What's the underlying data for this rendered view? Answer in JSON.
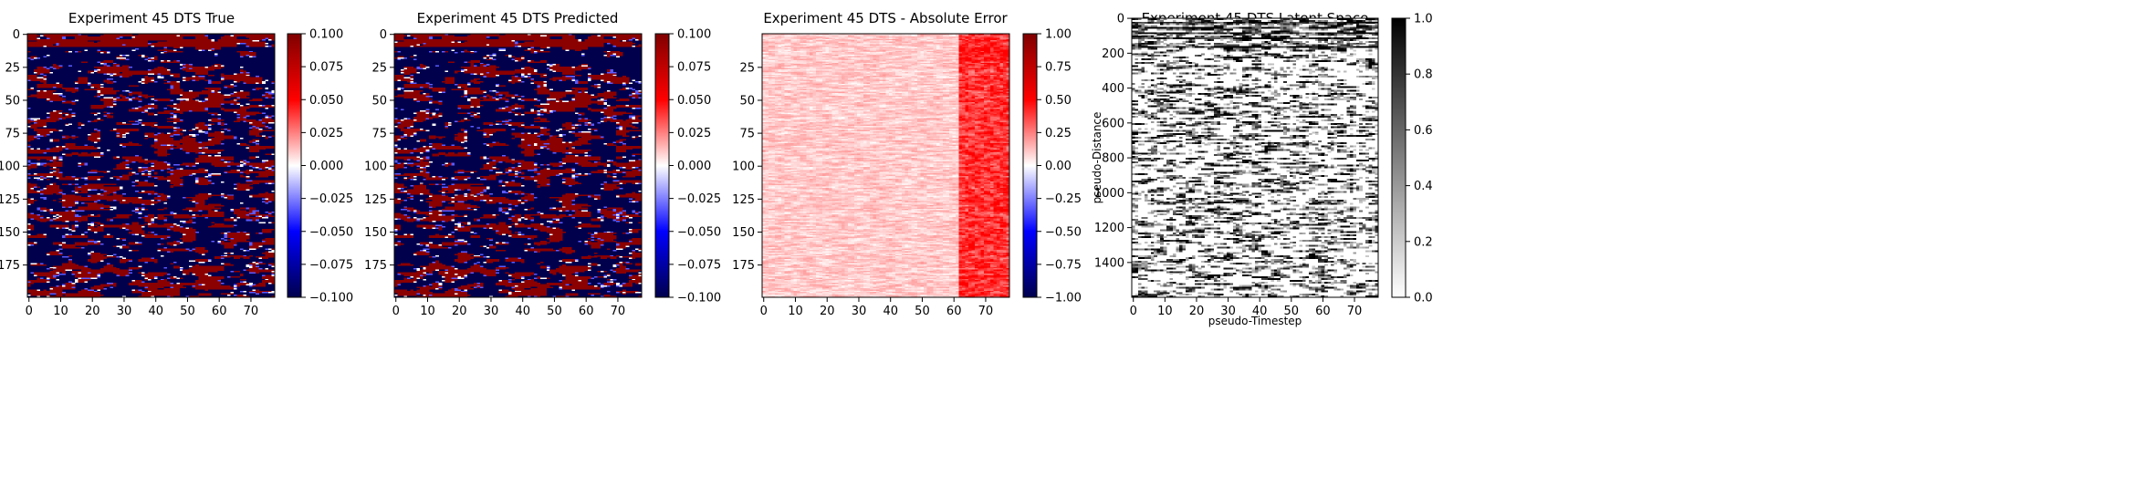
{
  "chart_data": [
    {
      "type": "heatmap",
      "title": "Experiment 45 DTS True",
      "xlabel": "",
      "ylabel": "",
      "x_ticks": [
        0,
        10,
        20,
        30,
        40,
        50,
        60,
        70
      ],
      "y_ticks": [
        25,
        50,
        75,
        100,
        125,
        150,
        175
      ],
      "y_ticks_first": "0",
      "xlim": [
        0,
        77
      ],
      "ylim": [
        199,
        0
      ],
      "colormap": "seismic",
      "colorbar_range": [
        -0.1,
        0.1
      ],
      "colorbar_ticks": [
        "0.100",
        "0.075",
        "0.050",
        "0.025",
        "0.000",
        "−0.025",
        "−0.050",
        "−0.075",
        "−0.100"
      ],
      "pattern": "binary blobs saturated at ±0.1 with bands near rows 0-25"
    },
    {
      "type": "heatmap",
      "title": "Experiment 45 DTS Predicted",
      "xlabel": "",
      "ylabel": "",
      "x_ticks": [
        0,
        10,
        20,
        30,
        40,
        50,
        60,
        70
      ],
      "y_ticks": [
        25,
        50,
        75,
        100,
        125,
        150,
        175
      ],
      "y_ticks_first": "0",
      "xlim": [
        0,
        77
      ],
      "ylim": [
        199,
        0
      ],
      "colormap": "seismic",
      "colorbar_range": [
        -0.1,
        0.1
      ],
      "colorbar_ticks": [
        "0.100",
        "0.075",
        "0.050",
        "0.025",
        "0.000",
        "−0.025",
        "−0.050",
        "−0.075",
        "−0.100"
      ],
      "pattern": "nearly identical to true field"
    },
    {
      "type": "heatmap",
      "title": "Experiment 45 DTS - Absolute Error",
      "xlabel": "",
      "ylabel": "",
      "x_ticks": [
        0,
        10,
        20,
        30,
        40,
        50,
        60,
        70
      ],
      "y_ticks": [
        25,
        50,
        75,
        100,
        125,
        150,
        175
      ],
      "xlim": [
        0,
        77
      ],
      "ylim": [
        199,
        0
      ],
      "colormap": "seismic",
      "colorbar_range": [
        -1.0,
        1.0
      ],
      "colorbar_ticks": [
        "1.00",
        "0.75",
        "0.50",
        "0.25",
        "0.00",
        "−0.25",
        "−0.50",
        "−0.75",
        "−1.00"
      ],
      "pattern": "faint pink (~0.1) everywhere, stronger red (~0.3-0.5) for columns 62-77"
    },
    {
      "type": "heatmap",
      "title": "Experiment 45 DTS Latent Space",
      "xlabel": "pseudo-Timestep",
      "ylabel": "pseudo-Distance",
      "x_ticks": [
        0,
        10,
        20,
        30,
        40,
        50,
        60,
        70
      ],
      "y_ticks": [
        0,
        200,
        400,
        600,
        800,
        1000,
        1200,
        1400
      ],
      "xlim": [
        0,
        77
      ],
      "ylim": [
        1599,
        0
      ],
      "colormap": "binary",
      "colorbar_range": [
        0.0,
        1.0
      ],
      "colorbar_ticks": [
        "1.0",
        "0.8",
        "0.6",
        "0.4",
        "0.2",
        "0.0"
      ],
      "pattern": "horizontal streaks, dense black lines near rows 0-200"
    }
  ]
}
